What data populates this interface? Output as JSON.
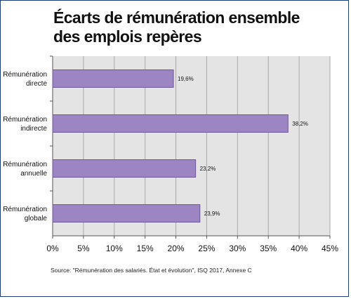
{
  "title_line1": "Écarts de rémunération ensemble",
  "title_line2": "des emplois repères",
  "source": "Source: \"Rémunération des salariés. État et évolution\", ISQ 2017, Annexe C",
  "colors": {
    "bar_fill": "#9d85c3",
    "bar_stroke": "#6d5896",
    "plot_bg": "#e4e4e4",
    "grid": "#a9a9a9",
    "frame": "#1f3f7a"
  },
  "chart_data": {
    "type": "bar",
    "orientation": "horizontal",
    "categories": [
      [
        "Rémunération",
        "directe"
      ],
      [
        "Rémunération",
        "indirecte"
      ],
      [
        "Rémunération",
        "annuelle"
      ],
      [
        "Rémunération",
        "globale"
      ]
    ],
    "values": [
      19.6,
      38.2,
      23.2,
      23.9
    ],
    "value_labels": [
      "19,6%",
      "38,2%",
      "23,2%",
      "23,9%"
    ],
    "xlim": [
      0,
      45
    ],
    "xticks": [
      0,
      5,
      10,
      15,
      20,
      25,
      30,
      35,
      40,
      45
    ],
    "xtick_labels": [
      "0%",
      "5%",
      "10%",
      "15%",
      "20%",
      "25%",
      "30%",
      "35%",
      "40%",
      "45%"
    ],
    "grid": true
  }
}
